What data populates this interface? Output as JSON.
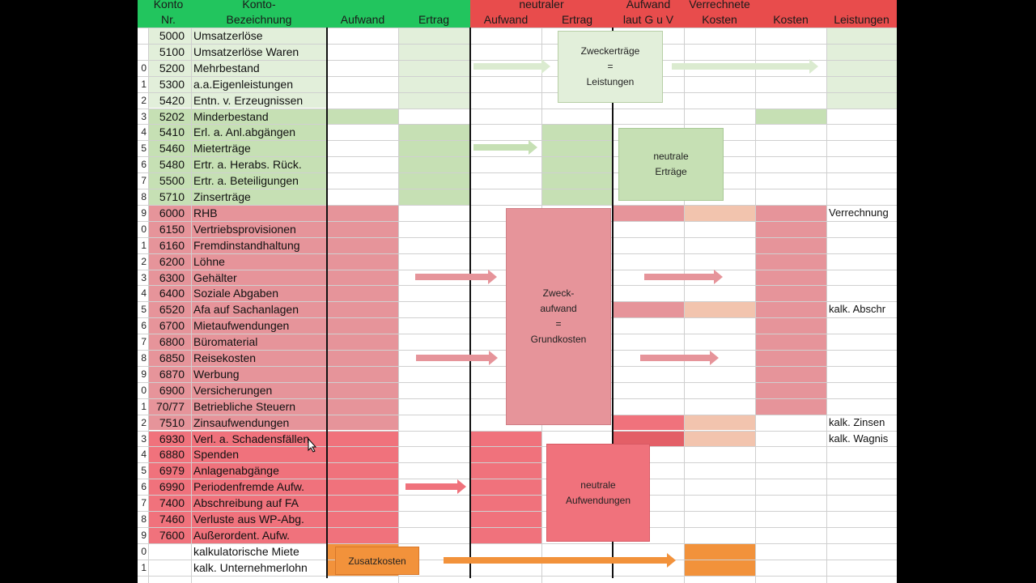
{
  "header": {
    "konto_nr": [
      "Konto",
      "Nr."
    ],
    "bezeichnung": [
      "Konto-",
      "Bezeichnung"
    ],
    "aufwand": "Aufwand",
    "ertrag": "Ertrag",
    "neutraler": "neutraler",
    "n_aufwand": "Aufwand",
    "n_ertrag": "Ertrag",
    "guv": [
      "Aufwand",
      "laut  G u V"
    ],
    "verrechnete": [
      "Verrechnete",
      "Kosten"
    ],
    "kosten": "Kosten",
    "leistungen": "Leistungen"
  },
  "rows": [
    {
      "rn": "",
      "konto": "5000",
      "label": "Umsatzerlöse",
      "side": ""
    },
    {
      "rn": "",
      "konto": "5100",
      "label": "Umsatzerlöse Waren",
      "side": ""
    },
    {
      "rn": "0",
      "konto": "5200",
      "label": "Mehrbestand",
      "side": ""
    },
    {
      "rn": "1",
      "konto": "5300",
      "label": "a.a.Eigenleistungen",
      "side": ""
    },
    {
      "rn": "2",
      "konto": "5420",
      "label": "Entn. v. Erzeugnissen",
      "side": ""
    },
    {
      "rn": "3",
      "konto": "5202",
      "label": "Minderbestand",
      "side": ""
    },
    {
      "rn": "4",
      "konto": "5410",
      "label": "Erl. a. Anl.abgängen",
      "side": ""
    },
    {
      "rn": "5",
      "konto": "5460",
      "label": "Mieterträge",
      "side": ""
    },
    {
      "rn": "6",
      "konto": "5480",
      "label": "Ertr. a. Herabs. Rück.",
      "side": ""
    },
    {
      "rn": "7",
      "konto": "5500",
      "label": "Ertr. a. Beteiligungen",
      "side": ""
    },
    {
      "rn": "8",
      "konto": "5710",
      "label": "Zinserträge",
      "side": ""
    },
    {
      "rn": "9",
      "konto": "6000",
      "label": "RHB",
      "side": "Verrechnung"
    },
    {
      "rn": "0",
      "konto": "6150",
      "label": "Vertriebsprovisionen",
      "side": ""
    },
    {
      "rn": "1",
      "konto": "6160",
      "label": "Fremdinstandhaltung",
      "side": ""
    },
    {
      "rn": "2",
      "konto": "6200",
      "label": "Löhne",
      "side": ""
    },
    {
      "rn": "3",
      "konto": "6300",
      "label": "Gehälter",
      "side": ""
    },
    {
      "rn": "4",
      "konto": "6400",
      "label": "Soziale Abgaben",
      "side": ""
    },
    {
      "rn": "5",
      "konto": "6520",
      "label": "Afa auf Sachanlagen",
      "side": "kalk. Abschr"
    },
    {
      "rn": "6",
      "konto": "6700",
      "label": "Mietaufwendungen",
      "side": ""
    },
    {
      "rn": "7",
      "konto": "6800",
      "label": "Büromaterial",
      "side": ""
    },
    {
      "rn": "8",
      "konto": "6850",
      "label": "Reisekosten",
      "side": ""
    },
    {
      "rn": "9",
      "konto": "6870",
      "label": "Werbung",
      "side": ""
    },
    {
      "rn": "0",
      "konto": "6900",
      "label": "Versicherungen",
      "side": ""
    },
    {
      "rn": "1",
      "konto": "70/77",
      "label": "Betriebliche Steuern",
      "side": ""
    },
    {
      "rn": "2",
      "konto": "7510",
      "label": "Zinsaufwendungen",
      "side": "kalk. Zinsen"
    },
    {
      "rn": "3",
      "konto": "6930",
      "label": "Verl. a. Schadensfällen",
      "side": "kalk. Wagnis"
    },
    {
      "rn": "4",
      "konto": "6880",
      "label": "Spenden",
      "side": ""
    },
    {
      "rn": "5",
      "konto": "6979",
      "label": "Anlagenabgänge",
      "side": ""
    },
    {
      "rn": "6",
      "konto": "6990",
      "label": "Periodenfremde Aufw.",
      "side": ""
    },
    {
      "rn": "7",
      "konto": "7400",
      "label": "Abschreibung auf FA",
      "side": ""
    },
    {
      "rn": "8",
      "konto": "7460",
      "label": "Verluste aus WP-Abg.",
      "side": ""
    },
    {
      "rn": "9",
      "konto": "7600",
      "label": "Außerordent. Aufw.",
      "side": ""
    },
    {
      "rn": "0",
      "konto": "",
      "label": "kalkulatorische Miete",
      "side": ""
    },
    {
      "rn": "1",
      "konto": "",
      "label": "kalk. Unternehmerlohn",
      "side": ""
    }
  ],
  "boxes": {
    "zweckertraege": [
      "Zweckerträge",
      "=",
      "Leistungen"
    ],
    "neutrale_ertraege": [
      "neutrale",
      "Erträge"
    ],
    "zweckaufwand": [
      "Zweck-",
      "aufwand",
      "=",
      "Grundkosten"
    ],
    "neutrale_aufwendungen": [
      "neutrale",
      "Aufwendungen"
    ],
    "zusatzkosten": "Zusatzkosten"
  },
  "colors": {
    "green_light": "#e2efda",
    "green": "#c6e0b4",
    "red": "#e6949a",
    "red_strong": "#f0727c",
    "salmon": "#f2c4ae",
    "orange": "#f2923b",
    "header_green": "#22c55e",
    "header_red": "#e84c4c"
  }
}
